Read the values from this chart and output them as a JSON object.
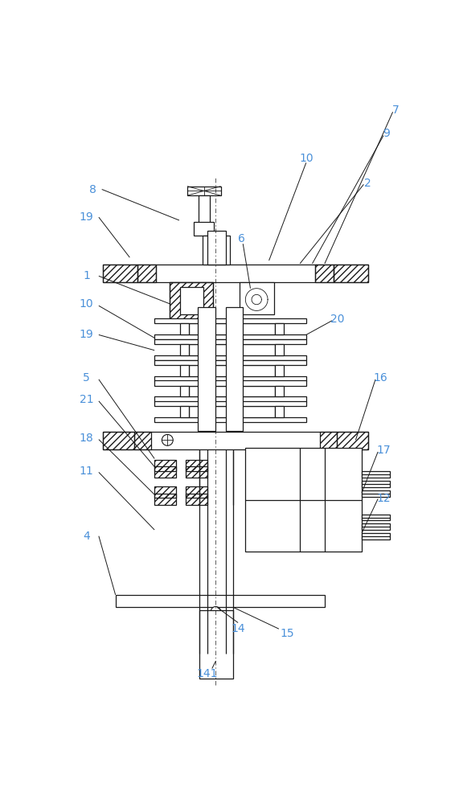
{
  "background_color": "#ffffff",
  "line_color": "#1a1a1a",
  "label_color": "#4a90d9",
  "figsize": [
    5.71,
    10.0
  ],
  "dpi": 100,
  "label_fontsize": 10,
  "lw_main": 0.9,
  "lw_thin": 0.6
}
